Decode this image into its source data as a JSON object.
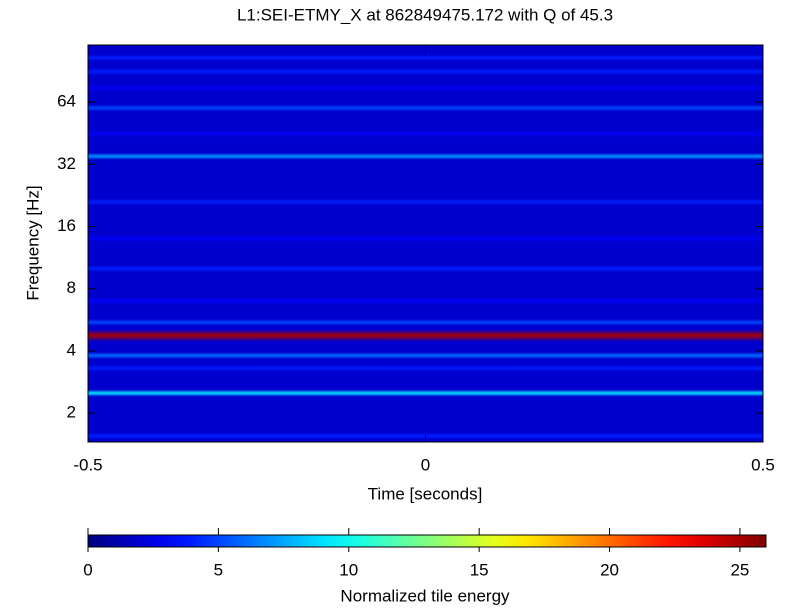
{
  "chart_data": {
    "type": "spectrogram",
    "title": "L1:SEI-ETMY_X at 862849475.172 with Q of 45.3",
    "x_label": "Time [seconds]",
    "y_label": "Frequency [Hz]",
    "colorbar_label": "Normalized tile energy",
    "xlim": [
      -0.5,
      0.5
    ],
    "xticks": [
      -0.5,
      0,
      0.5
    ],
    "ylim": [
      1.45,
      121
    ],
    "yticks": [
      2,
      4,
      8,
      16,
      32,
      64
    ],
    "y_scale": "log2",
    "clim": [
      0,
      26
    ],
    "cticks": [
      0,
      5,
      10,
      15,
      20,
      25
    ],
    "colormap": "jet",
    "background_energy": 2,
    "frequencies": [
      1.55,
      2.5,
      3.3,
      3.8,
      4.75,
      5.5,
      7,
      10,
      14,
      21,
      35,
      45,
      60,
      75,
      90,
      105
    ],
    "energies": [
      4,
      9,
      4,
      6,
      25,
      5,
      3,
      4,
      3,
      4,
      7,
      3,
      5,
      3,
      4,
      4
    ]
  }
}
